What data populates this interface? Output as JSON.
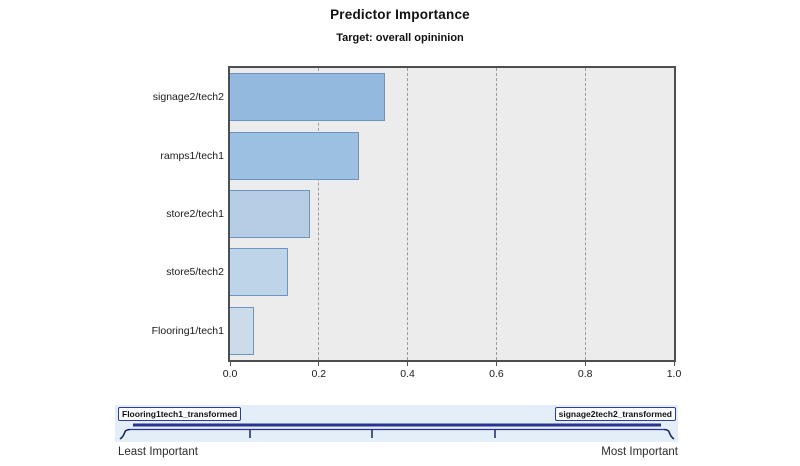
{
  "chart_data": {
    "type": "bar",
    "orientation": "horizontal",
    "title": "Predictor Importance",
    "subtitle": "Target: overall opininion",
    "categories": [
      "signage2/tech2",
      "ramps1/tech1",
      "store2/tech1",
      "store5/tech2",
      "Flooring1/tech1"
    ],
    "values": [
      0.35,
      0.29,
      0.18,
      0.13,
      0.055
    ],
    "xlabel": "",
    "ylabel": "",
    "xlim": [
      0.0,
      1.0
    ],
    "xtick_labels": [
      "0.0",
      "0.2",
      "0.4",
      "0.6",
      "0.8",
      "1.0"
    ],
    "xtick_values": [
      0.0,
      0.2,
      0.4,
      0.6,
      0.8,
      1.0
    ],
    "gridlines": {
      "axis": "x",
      "values": [
        0.2,
        0.4,
        0.6,
        0.8
      ],
      "style": "dashed"
    },
    "legend": "none",
    "plot_background": "#ececec",
    "bar_fill_colors": [
      "#94b9de",
      "#9cc0e1",
      "#b5cde5",
      "#bed4e9",
      "#cbdbea"
    ],
    "bar_border_color": "#6e94c2"
  },
  "slider": {
    "left_box_label": "Flooring1tech1_transformed",
    "right_box_label": "signage2tech2_transformed",
    "left_end_label": "Least Important",
    "right_end_label": "Most Important",
    "panel_color": "#e3eef8",
    "track_color": "#28348f"
  }
}
